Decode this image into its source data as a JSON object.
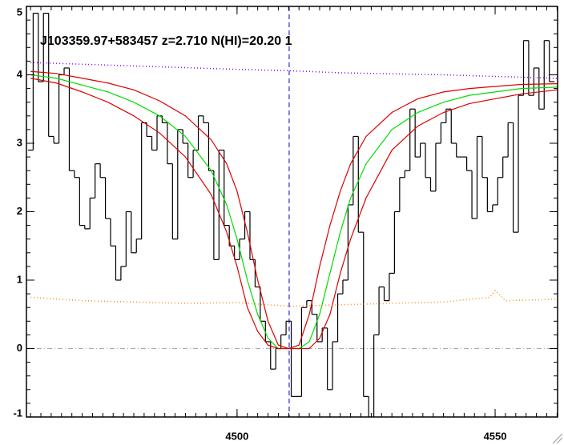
{
  "chart_data": {
    "type": "line",
    "title": "J103359.97+583457 z=2.710 N(HI)=20.20 1",
    "xlim": [
      4459.2,
      4562.1
    ],
    "ylim": [
      -1,
      5
    ],
    "xticks": [
      4500,
      4550
    ],
    "yticks": [
      -1,
      0,
      1,
      2,
      3,
      4,
      5
    ],
    "xminor_step": 2,
    "yminor_step": 0.2,
    "series": [
      {
        "color": "#000000",
        "style": "step",
        "x": [
          4460,
          4461,
          4462,
          4463,
          4464,
          4465,
          4466,
          4467,
          4468,
          4469,
          4470,
          4471,
          4472,
          4473,
          4474,
          4475,
          4476,
          4477,
          4478,
          4479,
          4480,
          4481,
          4482,
          4483,
          4484,
          4485,
          4486,
          4487,
          4488,
          4489,
          4490,
          4491,
          4492,
          4493,
          4494,
          4495,
          4496,
          4497,
          4498,
          4499,
          4500,
          4501,
          4502,
          4503,
          4504,
          4505,
          4506,
          4507,
          4508,
          4509,
          4510,
          4511,
          4512,
          4513,
          4514,
          4515,
          4516,
          4517,
          4518,
          4519,
          4520,
          4521,
          4522,
          4523,
          4524,
          4525,
          4526,
          4527,
          4528,
          4529,
          4530,
          4531,
          4532,
          4533,
          4534,
          4535,
          4536,
          4537,
          4538,
          4539,
          4540,
          4541,
          4542,
          4543,
          4544,
          4545,
          4546,
          4547,
          4548,
          4549,
          4550,
          4551,
          4552,
          4553,
          4554,
          4555,
          4556,
          4557,
          4558,
          4559,
          4560,
          4561
        ],
        "values": [
          2.9,
          4.9,
          3.9,
          4.9,
          3.1,
          3.0,
          4.0,
          4.1,
          2.6,
          2.5,
          1.8,
          1.75,
          2.2,
          2.7,
          2.5,
          1.9,
          1.5,
          1.0,
          1.2,
          2.0,
          1.4,
          1.6,
          3.3,
          3.1,
          2.9,
          3.4,
          3.3,
          2.7,
          1.6,
          3.2,
          3.0,
          2.5,
          2.9,
          3.4,
          3.3,
          2.6,
          1.3,
          2.9,
          1.8,
          1.5,
          1.3,
          1.6,
          2.0,
          1.3,
          0.9,
          0.4,
          0.1,
          -0.3,
          0.0,
          0.2,
          0.4,
          -0.7,
          -0.7,
          0.6,
          0.7,
          0.5,
          0.1,
          0.3,
          -0.6,
          0.1,
          0.8,
          1.0,
          2.1,
          3.1,
          1.7,
          -0.7,
          -1.0,
          0.2,
          0.9,
          0.7,
          1.1,
          2.0,
          2.5,
          2.6,
          3.5,
          2.8,
          3.0,
          2.5,
          2.3,
          3.0,
          3.3,
          3.5,
          3.0,
          2.8,
          2.8,
          2.6,
          1.9,
          3.1,
          2.5,
          2.0,
          2.1,
          2.5,
          2.8,
          3.3,
          1.7,
          3.7,
          4.5,
          3.7,
          4.1,
          3.5,
          4.5,
          3.9
        ]
      },
      {
        "color": "#00dd00",
        "style": "solid",
        "x": [
          4460,
          4465,
          4470,
          4475,
          4480,
          4485,
          4490,
          4495,
          4498,
          4500,
          4502,
          4504,
          4506,
          4508,
          4510,
          4512,
          4514,
          4516,
          4518,
          4520,
          4522,
          4525,
          4530,
          4535,
          4540,
          4545,
          4550,
          4555,
          4562
        ],
        "values": [
          4.0,
          3.95,
          3.85,
          3.75,
          3.6,
          3.4,
          3.1,
          2.6,
          2.1,
          1.6,
          1.0,
          0.5,
          0.15,
          0.0,
          0.0,
          0.0,
          0.1,
          0.5,
          1.1,
          1.7,
          2.2,
          2.7,
          3.2,
          3.45,
          3.6,
          3.7,
          3.75,
          3.8,
          3.82
        ]
      },
      {
        "color": "#dd0000",
        "style": "solid",
        "x": [
          4460,
          4465,
          4470,
          4475,
          4480,
          4485,
          4490,
          4495,
          4498,
          4500,
          4502,
          4504,
          4506,
          4508,
          4510,
          4512,
          4514,
          4516,
          4518,
          4520,
          4522,
          4525,
          4530,
          4535,
          4540,
          4545,
          4550,
          4555,
          4562
        ],
        "values": [
          4.05,
          4.02,
          3.95,
          3.88,
          3.78,
          3.62,
          3.4,
          3.05,
          2.7,
          2.3,
          1.7,
          1.0,
          0.4,
          0.05,
          0.0,
          0.05,
          0.5,
          1.2,
          1.8,
          2.3,
          2.7,
          3.1,
          3.45,
          3.65,
          3.75,
          3.8,
          3.83,
          3.86,
          3.87
        ]
      },
      {
        "color": "#dd0000",
        "style": "solid",
        "x": [
          4460,
          4465,
          4470,
          4475,
          4480,
          4485,
          4490,
          4495,
          4498,
          4500,
          4502,
          4504,
          4506,
          4508,
          4510,
          4512,
          4514,
          4516,
          4518,
          4520,
          4522,
          4525,
          4530,
          4535,
          4540,
          4545,
          4550,
          4555,
          4562
        ],
        "values": [
          3.95,
          3.88,
          3.75,
          3.6,
          3.4,
          3.15,
          2.8,
          2.25,
          1.7,
          1.2,
          0.6,
          0.25,
          0.05,
          0.0,
          0.0,
          0.0,
          0.0,
          0.15,
          0.5,
          1.1,
          1.6,
          2.2,
          2.9,
          3.25,
          3.45,
          3.58,
          3.65,
          3.72,
          3.78
        ]
      },
      {
        "color": "#7a00ff",
        "style": "dotted",
        "x": [
          4460,
          4480,
          4500,
          4510,
          4520,
          4540,
          4562
        ],
        "values": [
          4.18,
          4.13,
          4.08,
          4.06,
          4.03,
          4.0,
          3.95
        ]
      },
      {
        "color": "#ff8c1a",
        "style": "dotted",
        "x": [
          4460,
          4470,
          4480,
          4490,
          4500,
          4510,
          4520,
          4530,
          4540,
          4549,
          4550,
          4552,
          4562
        ],
        "values": [
          0.75,
          0.7,
          0.68,
          0.66,
          0.67,
          0.62,
          0.64,
          0.66,
          0.68,
          0.75,
          0.85,
          0.7,
          0.72
        ]
      }
    ],
    "reference_lines": [
      {
        "axis": "y",
        "value": 0,
        "color": "#aaaaaa",
        "style": "dashdot"
      },
      {
        "axis": "x",
        "value": 4510.1,
        "color": "#0000cc",
        "style": "dashed"
      }
    ]
  }
}
